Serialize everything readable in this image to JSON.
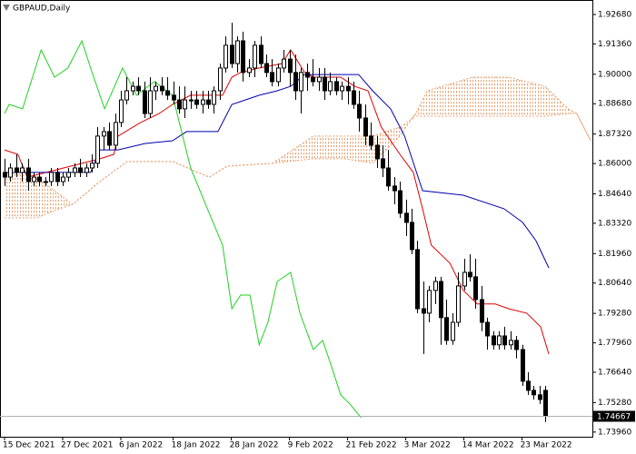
{
  "chart_data": {
    "type": "candlestick",
    "title": "GBPAUD,Daily",
    "categories": [
      "15 Dec 2021",
      null,
      null,
      null,
      null,
      null,
      null,
      null,
      null,
      null,
      "27 Dec 2021",
      null,
      null,
      null,
      null,
      null,
      null,
      null,
      null,
      null,
      "6 Jan 2022",
      null,
      null,
      null,
      null,
      null,
      null,
      null,
      null,
      "18 Jan 2022",
      null,
      null,
      null,
      null,
      null,
      null,
      null,
      null,
      null,
      "28 Jan 2022",
      null,
      null,
      null,
      null,
      null,
      null,
      null,
      null,
      null,
      "9 Feb 2022",
      null,
      null,
      null,
      null,
      null,
      null,
      null,
      null,
      null,
      "21 Feb 2022",
      null,
      null,
      null,
      null,
      null,
      null,
      null,
      null,
      null,
      "3 Mar 2022",
      null,
      null,
      null,
      null,
      null,
      null,
      null,
      null,
      null,
      "14 Mar 2022",
      null,
      null,
      null,
      null,
      null,
      null,
      null,
      null,
      null,
      "23 Mar 2022",
      null,
      null,
      null,
      null
    ],
    "candles": [
      [
        1.856,
        1.8621,
        1.8499,
        1.8539
      ],
      [
        1.8539,
        1.8601,
        1.8519,
        1.858
      ],
      [
        1.858,
        1.8641,
        1.8539,
        1.856
      ],
      [
        1.856,
        1.8601,
        1.8519,
        1.858
      ],
      [
        1.858,
        1.8621,
        1.8478,
        1.8519
      ],
      [
        1.8519,
        1.856,
        1.8499,
        1.8539
      ],
      [
        1.8539,
        1.856,
        1.8499,
        1.8519
      ],
      [
        1.8519,
        1.8539,
        1.8499,
        1.8519
      ],
      [
        1.8519,
        1.858,
        1.8499,
        1.856
      ],
      [
        1.856,
        1.858,
        1.8499,
        1.8519
      ],
      [
        1.8519,
        1.856,
        1.8499,
        1.8539
      ],
      [
        1.8539,
        1.858,
        1.8519,
        1.856
      ],
      [
        1.856,
        1.8601,
        1.8539,
        1.858
      ],
      [
        1.858,
        1.8621,
        1.8539,
        1.856
      ],
      [
        1.856,
        1.8601,
        1.8539,
        1.858
      ],
      [
        1.858,
        1.8641,
        1.856,
        1.8601
      ],
      [
        1.8601,
        1.8763,
        1.858,
        1.8723
      ],
      [
        1.8723,
        1.8763,
        1.8661,
        1.8743
      ],
      [
        1.8743,
        1.8784,
        1.8661,
        1.8682
      ],
      [
        1.8682,
        1.8824,
        1.8661,
        1.8784
      ],
      [
        1.8784,
        1.8926,
        1.8763,
        1.8885
      ],
      [
        1.8885,
        1.8987,
        1.8865,
        1.8926
      ],
      [
        1.8926,
        1.8967,
        1.8906,
        1.8946
      ],
      [
        1.8946,
        1.8987,
        1.8906,
        1.8926
      ],
      [
        1.8926,
        1.8967,
        1.8804,
        1.8824
      ],
      [
        1.8824,
        1.8987,
        1.8804,
        1.8926
      ],
      [
        1.8926,
        1.8967,
        1.8885,
        1.8946
      ],
      [
        1.8946,
        1.8987,
        1.8906,
        1.8926
      ],
      [
        1.8926,
        1.8987,
        1.8885,
        1.8906
      ],
      [
        1.8906,
        1.8967,
        1.8865,
        1.8885
      ],
      [
        1.8885,
        1.8946,
        1.8824,
        1.8845
      ],
      [
        1.8845,
        1.8946,
        1.8804,
        1.8885
      ],
      [
        1.8885,
        1.8926,
        1.8845,
        1.8885
      ],
      [
        1.8885,
        1.8926,
        1.8845,
        1.8865
      ],
      [
        1.8865,
        1.8926,
        1.8824,
        1.8885
      ],
      [
        1.8885,
        1.8926,
        1.8845,
        1.8865
      ],
      [
        1.8865,
        1.8946,
        1.8824,
        1.8926
      ],
      [
        1.8926,
        1.9048,
        1.8885,
        1.9028
      ],
      [
        1.9028,
        1.917,
        1.9008,
        1.913
      ],
      [
        1.913,
        1.9231,
        1.9028,
        1.9048
      ],
      [
        1.9048,
        1.917,
        1.9008,
        1.915
      ],
      [
        1.915,
        1.9191,
        1.8967,
        1.9008
      ],
      [
        1.9008,
        1.9068,
        1.8987,
        1.9028
      ],
      [
        1.9028,
        1.915,
        1.8987,
        1.913
      ],
      [
        1.913,
        1.917,
        1.9028,
        1.9048
      ],
      [
        1.9048,
        1.9089,
        1.8987,
        1.9008
      ],
      [
        1.9008,
        1.9068,
        1.8946,
        1.8967
      ],
      [
        1.8967,
        1.9048,
        1.8946,
        1.9028
      ],
      [
        1.9028,
        1.9109,
        1.9008,
        1.9068
      ],
      [
        1.9068,
        1.9109,
        1.8946,
        1.9008
      ],
      [
        1.9008,
        1.9089,
        1.8885,
        1.8926
      ],
      [
        1.8926,
        1.9028,
        1.8824,
        1.9008
      ],
      [
        1.9008,
        1.9048,
        1.8926,
        1.8987
      ],
      [
        1.8987,
        1.9068,
        1.8946,
        1.8967
      ],
      [
        1.8967,
        1.9028,
        1.8926,
        1.8987
      ],
      [
        1.8987,
        1.9028,
        1.8885,
        1.8926
      ],
      [
        1.8926,
        1.9008,
        1.8906,
        1.8967
      ],
      [
        1.8967,
        1.8987,
        1.8906,
        1.8926
      ],
      [
        1.8926,
        1.8967,
        1.8885,
        1.8946
      ],
      [
        1.8946,
        1.8987,
        1.8865,
        1.8926
      ],
      [
        1.8926,
        1.8967,
        1.8845,
        1.8865
      ],
      [
        1.8865,
        1.8926,
        1.8743,
        1.8804
      ],
      [
        1.8804,
        1.8865,
        1.8682,
        1.8723
      ],
      [
        1.8723,
        1.8784,
        1.8661,
        1.8682
      ],
      [
        1.8682,
        1.8723,
        1.858,
        1.8621
      ],
      [
        1.8621,
        1.8682,
        1.8539,
        1.858
      ],
      [
        1.858,
        1.8661,
        1.8478,
        1.8499
      ],
      [
        1.8499,
        1.8539,
        1.8417,
        1.8478
      ],
      [
        1.8478,
        1.8519,
        1.8356,
        1.8377
      ],
      [
        1.8377,
        1.8438,
        1.8275,
        1.8336
      ],
      [
        1.8336,
        1.8397,
        1.8193,
        1.8214
      ],
      [
        1.8214,
        1.8254,
        1.7929,
        1.7949
      ],
      [
        1.7949,
        1.8071,
        1.7746,
        1.7929
      ],
      [
        1.7929,
        1.8051,
        1.7888,
        1.8031
      ],
      [
        1.8031,
        1.8092,
        1.797,
        1.8071
      ],
      [
        1.8071,
        1.8092,
        1.7787,
        1.7909
      ],
      [
        1.7909,
        1.799,
        1.7787,
        1.7807
      ],
      [
        1.7807,
        1.7929,
        1.7787,
        1.7888
      ],
      [
        1.7888,
        1.8112,
        1.7868,
        1.8051
      ],
      [
        1.8051,
        1.8173,
        1.8031,
        1.8112
      ],
      [
        1.8112,
        1.8193,
        1.8071,
        1.8092
      ],
      [
        1.8092,
        1.8173,
        1.7949,
        1.799
      ],
      [
        1.799,
        1.8051,
        1.7848,
        1.7888
      ],
      [
        1.7888,
        1.7909,
        1.7766,
        1.7827
      ],
      [
        1.7827,
        1.7848,
        1.7766,
        1.7787
      ],
      [
        1.7787,
        1.7848,
        1.7766,
        1.7827
      ],
      [
        1.7827,
        1.7868,
        1.7766,
        1.7787
      ],
      [
        1.7787,
        1.7848,
        1.7766,
        1.7807
      ],
      [
        1.7807,
        1.7827,
        1.7726,
        1.7766
      ],
      [
        1.7766,
        1.7787,
        1.7603,
        1.7624
      ],
      [
        1.7624,
        1.7664,
        1.7563,
        1.7583
      ],
      [
        1.7583,
        1.7603,
        1.7542,
        1.7563
      ],
      [
        1.7563,
        1.7603,
        1.7522,
        1.7542
      ],
      [
        1.7583,
        1.7603,
        1.7441,
        1.74667
      ]
    ],
    "up_color": "#ffffff",
    "down_color": "#000000",
    "lines": [
      {
        "color": "#e00000",
        "x": [
          0,
          2.3,
          3.9,
          16.4,
          18.8,
          19.5,
          23.4,
          26.6,
          28.9,
          32,
          37.5,
          39.1,
          40.6,
          43.8,
          47.7,
          49.2,
          51.6,
          53.1,
          57.8,
          60.2,
          62.5,
          64.8,
          68,
          70.3,
          71.9,
          73.4,
          76.6,
          78.9,
          81.3,
          84.4,
          86.7,
          89.8,
          92.2,
          93.6
        ],
        "values": [
          1.8661,
          1.8641,
          1.8539,
          1.8621,
          1.8641,
          1.8723,
          1.8784,
          1.8824,
          1.8865,
          1.8906,
          1.8906,
          1.8987,
          1.9008,
          1.9028,
          1.9048,
          1.9109,
          1.9008,
          1.8987,
          1.8987,
          1.8946,
          1.8926,
          1.8763,
          1.8641,
          1.856,
          1.8397,
          1.8234,
          1.8153,
          1.8031,
          1.797,
          1.797,
          1.7949,
          1.7929,
          1.7868,
          1.7746
        ]
      },
      {
        "color": "#0000b0",
        "x": [
          0,
          14.8,
          16.4,
          19.5,
          24.2,
          28.9,
          31.3,
          36.7,
          39.1,
          41.4,
          43.8,
          46.9,
          49.2,
          51.6,
          60.9,
          63.3,
          66.4,
          68.8,
          71.9,
          78.9,
          85.9,
          89.1,
          91.4,
          93.6
        ],
        "values": [
          1.856,
          1.856,
          1.8661,
          1.8661,
          1.869,
          1.8702,
          1.8743,
          1.8743,
          1.8865,
          1.8885,
          1.8906,
          1.8926,
          1.8946,
          1.8999,
          1.8999,
          1.8926,
          1.8845,
          1.8723,
          1.8478,
          1.8458,
          1.8397,
          1.8336,
          1.8254,
          1.8132
        ]
      },
      {
        "color": "#20d020",
        "x": [
          0,
          0.8,
          3.1,
          6.3,
          8.6,
          10.9,
          13.3,
          14.8,
          17.2,
          20.3,
          22.7,
          25.8,
          28.9,
          32,
          35.2,
          37.5,
          39.1,
          40.6,
          42.2,
          43.8,
          45.3,
          46.9,
          49.2,
          50.8,
          53.1,
          54.7,
          56.3,
          57.8,
          59.4,
          61.3
        ],
        "values": [
          1.8824,
          1.8865,
          1.8845,
          1.9109,
          1.8987,
          1.9028,
          1.915,
          1.9028,
          1.8845,
          1.9028,
          1.8906,
          1.8967,
          1.8906,
          1.858,
          1.8377,
          1.8234,
          1.7949,
          1.801,
          1.801,
          1.7787,
          1.7888,
          1.8071,
          1.8112,
          1.7929,
          1.7766,
          1.7807,
          1.7685,
          1.7563,
          1.7522,
          1.7461
        ]
      }
    ],
    "cloud": {
      "color": "#e8a070",
      "x": [
        0,
        5.5,
        8.6,
        11.7,
        16.4,
        21.1,
        28.9,
        35.2,
        38.3,
        46.1,
        53.1,
        58.6,
        63.3,
        68,
        70.3,
        72.7,
        80.5,
        86.7,
        93,
        96.9,
        98.4,
        100.8
      ],
      "span_a": [
        1.856,
        1.8539,
        1.8478,
        1.8417,
        1.8519,
        1.8609,
        1.8609,
        1.8539,
        1.8588,
        1.8601,
        1.8723,
        1.8723,
        1.8723,
        1.8763,
        1.8804,
        1.8926,
        1.8987,
        1.8987,
        1.8946,
        1.8845,
        1.8824,
        1.8702
      ],
      "span_b": [
        1.8356,
        1.8356,
        1.8389,
        1.8417,
        1.8519,
        1.8609,
        1.8609,
        1.8539,
        1.8588,
        1.8601,
        1.8621,
        1.8621,
        1.8601,
        1.8723,
        1.8812,
        1.8812,
        1.8812,
        1.8812,
        1.8812,
        1.8824,
        1.8824,
        1.8702
      ]
    },
    "last_price": 1.74667,
    "xlim": [
      -0.78,
      101.1
    ],
    "ylim": [
      1.7375,
      1.9333
    ],
    "yticks": [
      {
        "value": 1.9268,
        "label": "1.92680"
      },
      {
        "value": 1.9136,
        "label": "1.91360"
      },
      {
        "value": 1.9,
        "label": "1.90000"
      },
      {
        "value": 1.8868,
        "label": "1.88680"
      },
      {
        "value": 1.8732,
        "label": "1.87320"
      },
      {
        "value": 1.86,
        "label": "1.86000"
      },
      {
        "value": 1.8464,
        "label": "1.84640"
      },
      {
        "value": 1.8332,
        "label": "1.83320"
      },
      {
        "value": 1.8196,
        "label": "1.81960"
      },
      {
        "value": 1.8064,
        "label": "1.80640"
      },
      {
        "value": 1.7928,
        "label": "1.79280"
      },
      {
        "value": 1.7796,
        "label": "1.77960"
      },
      {
        "value": 1.7664,
        "label": "1.76640"
      },
      {
        "value": 1.7528,
        "label": "1.75280"
      },
      {
        "value": 1.7396,
        "label": "1.73960"
      }
    ]
  }
}
